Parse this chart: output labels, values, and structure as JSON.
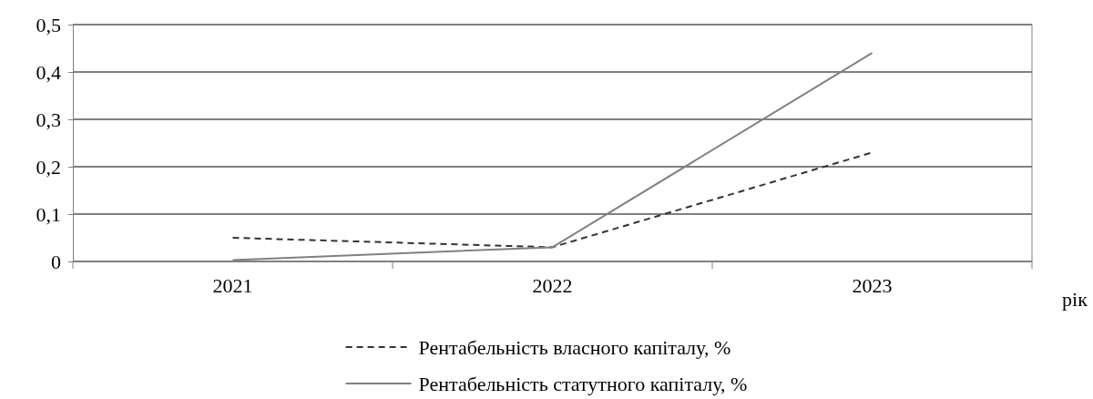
{
  "chart_data": {
    "type": "line",
    "xlabel": "рік",
    "categories": [
      "2021",
      "2022",
      "2023"
    ],
    "series": [
      {
        "name": "Рентабельність власного капіталу, %",
        "color": "#333333",
        "line_style": "dashed",
        "values": [
          0.05,
          0.03,
          0.23
        ]
      },
      {
        "name": "Рентабельність статутного капіталу, %",
        "color": "#808080",
        "line_style": "solid",
        "values": [
          0.003,
          0.03,
          0.44
        ]
      }
    ],
    "ylim": [
      0,
      0.5
    ],
    "yticks": [
      {
        "value": 0,
        "label": "0"
      },
      {
        "value": 0.1,
        "label": "0,1"
      },
      {
        "value": 0.2,
        "label": "0,2"
      },
      {
        "value": 0.3,
        "label": "0,3"
      },
      {
        "value": 0.4,
        "label": "0,4"
      },
      {
        "value": 0.5,
        "label": "0,5"
      }
    ],
    "grid": "y",
    "legend": "bottom",
    "marker": "none"
  }
}
